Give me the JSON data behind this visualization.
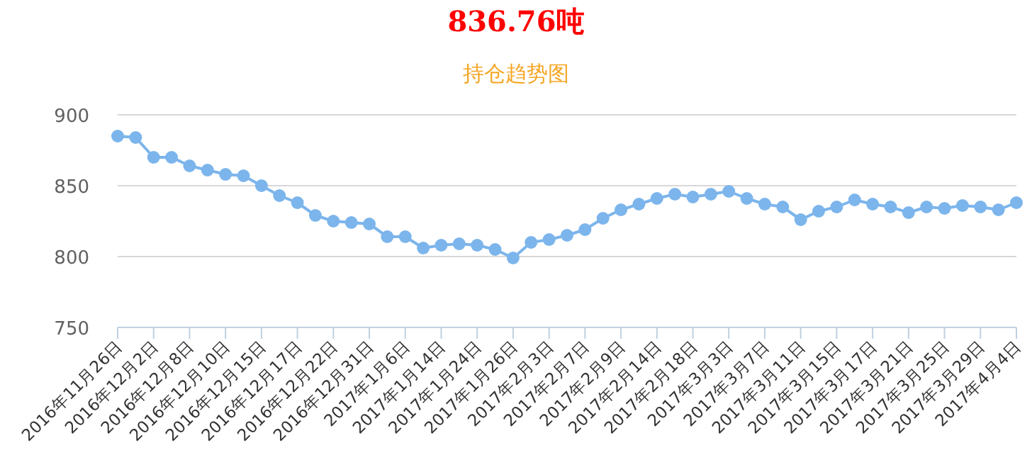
{
  "chart_data": {
    "type": "line",
    "title": "836.76吨",
    "subtitle": "持仓趋势图",
    "categories": [
      "2016年11月26日",
      null,
      "2016年12月2日",
      null,
      "2016年12月8日",
      null,
      "2016年12月10日",
      null,
      "2016年12月15日",
      null,
      "2016年12月17日",
      null,
      "2016年12月22日",
      null,
      "2016年12月31日",
      null,
      "2017年1月6日",
      null,
      "2017年1月14日",
      null,
      "2017年1月24日",
      null,
      "2017年1月26日",
      null,
      "2017年2月3日",
      null,
      "2017年2月7日",
      null,
      "2017年2月9日",
      null,
      "2017年2月14日",
      null,
      "2017年2月18日",
      null,
      "2017年3月3日",
      null,
      "2017年3月7日",
      null,
      "2017年3月11日",
      null,
      "2017年3月15日",
      null,
      "2017年3月17日",
      null,
      "2017年3月21日",
      null,
      "2017年3月25日",
      null,
      "2017年3月29日",
      null,
      "2017年4月4日"
    ],
    "series": [
      {
        "color": "#7cb5ec",
        "values": [
          885,
          884,
          870,
          870,
          864,
          861,
          858,
          857,
          850,
          843,
          838,
          829,
          825,
          824,
          823,
          814,
          814,
          806,
          808,
          809,
          808,
          805,
          799,
          810,
          812,
          815,
          819,
          827,
          833,
          837,
          841,
          844,
          842,
          844,
          846,
          841,
          837,
          835,
          826,
          832,
          835,
          840,
          837,
          835,
          831,
          835,
          834,
          836,
          835,
          833,
          838
        ]
      }
    ],
    "ylim": [
      750,
      900
    ],
    "yticks": [
      750,
      800,
      850,
      900
    ],
    "grid": "y",
    "marker": "circle"
  }
}
